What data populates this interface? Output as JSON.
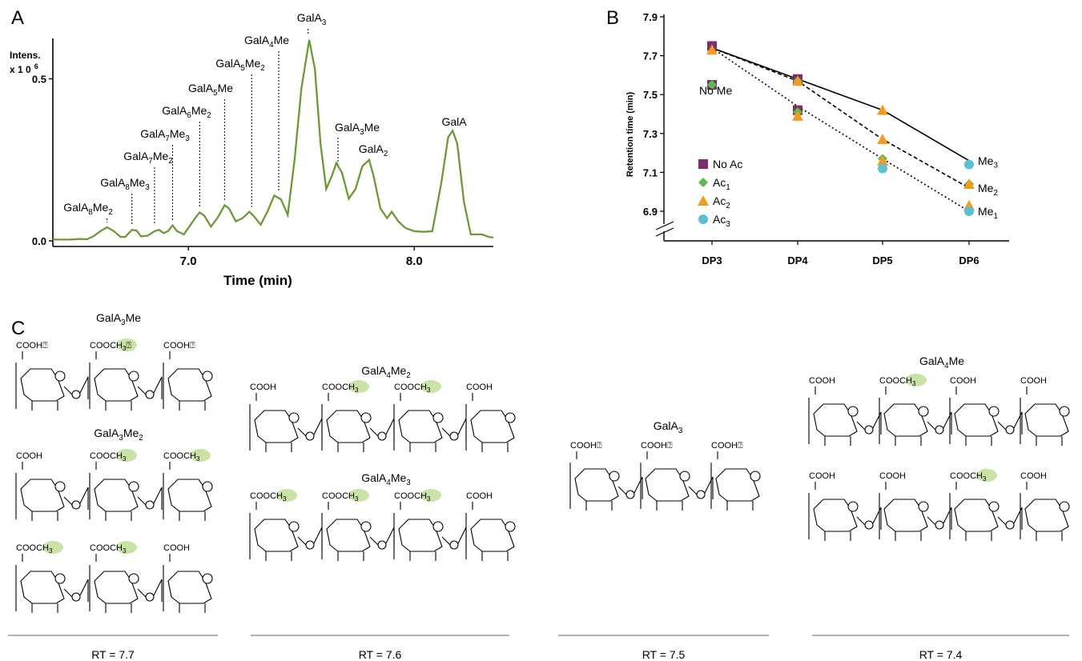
{
  "panels": {
    "a": "A",
    "b": "B",
    "c": "C"
  },
  "chart_data": [
    {
      "type": "line",
      "panel": "A",
      "xlabel": "Time (min)",
      "ylabel_line1": "Intens.",
      "ylabel_line2": "x 1 0",
      "ylabel_exp": "6",
      "xlim": [
        6.4,
        8.35
      ],
      "ylim": [
        0,
        0.6
      ],
      "xticks": [
        {
          "v": 7.0,
          "label": "7.0"
        },
        {
          "v": 8.0,
          "label": "8.0"
        }
      ],
      "yticks": [
        {
          "v": 0.0,
          "label": "0.0"
        },
        {
          "v": 0.5,
          "label": "0.5"
        }
      ],
      "line_color": "#6b9a34",
      "series": [
        {
          "values": [
            [
              6.4,
              0.004
            ],
            [
              6.48,
              0.004
            ],
            [
              6.52,
              0.006
            ],
            [
              6.55,
              0.005
            ],
            [
              6.58,
              0.014
            ],
            [
              6.61,
              0.03
            ],
            [
              6.64,
              0.042
            ],
            [
              6.67,
              0.03
            ],
            [
              6.7,
              0.012
            ],
            [
              6.72,
              0.012
            ],
            [
              6.75,
              0.034
            ],
            [
              6.77,
              0.032
            ],
            [
              6.79,
              0.014
            ],
            [
              6.82,
              0.016
            ],
            [
              6.85,
              0.03
            ],
            [
              6.87,
              0.034
            ],
            [
              6.89,
              0.024
            ],
            [
              6.91,
              0.03
            ],
            [
              6.93,
              0.048
            ],
            [
              6.95,
              0.03
            ],
            [
              6.98,
              0.02
            ],
            [
              7.0,
              0.04
            ],
            [
              7.03,
              0.07
            ],
            [
              7.05,
              0.088
            ],
            [
              7.07,
              0.078
            ],
            [
              7.1,
              0.044
            ],
            [
              7.13,
              0.072
            ],
            [
              7.16,
              0.11
            ],
            [
              7.18,
              0.1
            ],
            [
              7.21,
              0.06
            ],
            [
              7.24,
              0.07
            ],
            [
              7.27,
              0.09
            ],
            [
              7.29,
              0.076
            ],
            [
              7.32,
              0.05
            ],
            [
              7.35,
              0.09
            ],
            [
              7.38,
              0.14
            ],
            [
              7.41,
              0.128
            ],
            [
              7.44,
              0.08
            ],
            [
              7.47,
              0.25
            ],
            [
              7.5,
              0.47
            ],
            [
              7.535,
              0.62
            ],
            [
              7.56,
              0.53
            ],
            [
              7.585,
              0.3
            ],
            [
              7.61,
              0.16
            ],
            [
              7.635,
              0.2
            ],
            [
              7.655,
              0.24
            ],
            [
              7.68,
              0.21
            ],
            [
              7.71,
              0.13
            ],
            [
              7.74,
              0.16
            ],
            [
              7.77,
              0.23
            ],
            [
              7.8,
              0.25
            ],
            [
              7.82,
              0.2
            ],
            [
              7.85,
              0.1
            ],
            [
              7.88,
              0.07
            ],
            [
              7.9,
              0.09
            ],
            [
              7.93,
              0.06
            ],
            [
              7.96,
              0.04
            ],
            [
              8.0,
              0.03
            ],
            [
              8.04,
              0.028
            ],
            [
              8.08,
              0.03
            ],
            [
              8.12,
              0.18
            ],
            [
              8.15,
              0.32
            ],
            [
              8.17,
              0.34
            ],
            [
              8.19,
              0.3
            ],
            [
              8.22,
              0.12
            ],
            [
              8.25,
              0.02
            ],
            [
              8.3,
              0.02
            ],
            [
              8.33,
              0.012
            ],
            [
              8.35,
              0.01
            ]
          ]
        }
      ],
      "annotations": [
        {
          "id": "galA8Me2",
          "base": "GalA",
          "sub1": "8",
          "mid": "Me",
          "sub2": "2",
          "x": 6.64,
          "lineTop": 0.085
        },
        {
          "id": "galA8Me3",
          "base": "GalA",
          "sub1": "8",
          "mid": "Me",
          "sub2": "3",
          "x": 6.75,
          "lineTop": 0.175
        },
        {
          "id": "galA7Me2",
          "base": "GalA",
          "sub1": "7",
          "mid": "Me",
          "sub2": "2",
          "x": 6.85,
          "lineTop": 0.245
        },
        {
          "id": "galA7Me3",
          "base": "GalA",
          "sub1": "7",
          "mid": "Me",
          "sub2": "3",
          "x": 6.93,
          "lineTop": 0.315
        },
        {
          "id": "galA6Me2",
          "base": "GalA",
          "sub1": "6",
          "mid": "Me",
          "sub2": "2",
          "x": 7.05,
          "lineTop": 0.385
        },
        {
          "id": "galA5Me",
          "base": "GalA",
          "sub1": "5",
          "mid": "Me",
          "sub2": "",
          "x": 7.16,
          "lineTop": 0.458
        },
        {
          "id": "galA5Me2",
          "base": "GalA",
          "sub1": "5",
          "mid": "Me",
          "sub2": "2",
          "x": 7.28,
          "lineTop": 0.565
        },
        {
          "id": "galA4Me",
          "base": "GalA",
          "sub1": "4",
          "mid": "Me",
          "sub2": "",
          "x": 7.4,
          "lineTop": 0.665
        },
        {
          "id": "galA3",
          "base": "GalA",
          "sub1": "3",
          "mid": "",
          "sub2": "",
          "x": 7.53,
          "lineTop": 0.82
        },
        {
          "id": "galA3Me",
          "base": "GalA",
          "sub1": "",
          "mid": "",
          "sub2": "",
          "x": 7.65,
          "lineTop": 0.0,
          "text": "GalA3Me"
        },
        {
          "id": "galA2",
          "base": "GalA",
          "sub1": "2",
          "mid": "",
          "sub2": "",
          "x": 7.8,
          "lineTop": 0.0
        },
        {
          "id": "galA",
          "base": "GalA",
          "sub1": "",
          "mid": "",
          "sub2": "",
          "x": 8.15,
          "lineTop": 0.0
        }
      ]
    },
    {
      "type": "scatter",
      "panel": "B",
      "ylabel": "Retention time (min)",
      "categories": [
        "DP3",
        "DP4",
        "DP5",
        "DP6"
      ],
      "ylim": [
        6.75,
        7.9
      ],
      "yticks": [
        {
          "v": 7.9,
          "label": "7.9"
        },
        {
          "v": 7.7,
          "label": "7.7"
        },
        {
          "v": 7.5,
          "label": "7.5"
        },
        {
          "v": 7.3,
          "label": "7.3"
        },
        {
          "v": 7.1,
          "label": "7.1"
        },
        {
          "v": 6.9,
          "label": "6.9"
        }
      ],
      "axis_break": true,
      "series": [
        {
          "name": "No Ac",
          "sub": "",
          "shape": "square",
          "color": "#7b2f6e",
          "points": [
            [
              0,
              7.75
            ],
            [
              0,
              7.55
            ],
            [
              1,
              7.58
            ],
            [
              1,
              7.42
            ]
          ]
        },
        {
          "name": "Ac",
          "sub": "1",
          "shape": "diamond",
          "color": "#5dbb46",
          "points": [
            [
              0,
              7.55
            ],
            [
              1,
              7.57
            ],
            [
              1,
              7.41
            ],
            [
              2,
              7.17
            ],
            [
              3,
              7.04
            ]
          ]
        },
        {
          "name": "Ac",
          "sub": "2",
          "shape": "triangle",
          "color": "#f39c1f",
          "points": [
            [
              0,
              7.73
            ],
            [
              1,
              7.57
            ],
            [
              1,
              7.39
            ],
            [
              2,
              7.42
            ],
            [
              2,
              7.27
            ],
            [
              2,
              7.16
            ],
            [
              3,
              7.04
            ],
            [
              3,
              6.93
            ]
          ]
        },
        {
          "name": "Ac",
          "sub": "3",
          "shape": "circle",
          "color": "#5bc0d6",
          "points": [
            [
              2,
              7.12
            ],
            [
              3,
              7.14
            ],
            [
              3,
              6.9
            ]
          ]
        }
      ],
      "trend_lines": [
        {
          "name": "Me",
          "sub": "3",
          "style": "solid",
          "points": [
            [
              0,
              7.74
            ],
            [
              1,
              7.58
            ],
            [
              2,
              7.42
            ],
            [
              3,
              7.16
            ]
          ]
        },
        {
          "name": "Me",
          "sub": "2",
          "style": "dashed",
          "points": [
            [
              0,
              7.74
            ],
            [
              1,
              7.57
            ],
            [
              2,
              7.27
            ],
            [
              3,
              7.02
            ]
          ]
        },
        {
          "name": "Me",
          "sub": "1",
          "style": "dotted",
          "points": [
            [
              0,
              7.74
            ],
            [
              1,
              7.44
            ],
            [
              2,
              7.17
            ],
            [
              3,
              6.9
            ]
          ]
        }
      ],
      "annotation_no_me": "No Me"
    }
  ],
  "structures": {
    "group1": {
      "rt": "RT = 7.7",
      "molecules": [
        {
          "label": "GalA3Me",
          "base": "GalA",
          "sub1": "3",
          "mid": "Me",
          "sub2": "",
          "groups": [
            "COOH⍰",
            "COOCH3⍰",
            "COOH⍰"
          ]
        },
        {
          "label": "GalA3Me2",
          "base": "GalA",
          "sub1": "3",
          "mid": "Me",
          "sub2": "2",
          "groups": [
            "COOH",
            "COOCH3",
            "COOCH3"
          ]
        },
        {
          "label": "",
          "base": "",
          "sub1": "",
          "mid": "",
          "sub2": "",
          "groups": [
            "COOCH3",
            "COOCH3",
            "COOH"
          ]
        }
      ]
    },
    "group2": {
      "rt": "RT = 7.6",
      "molecules": [
        {
          "label": "GalA4Me2",
          "base": "GalA",
          "sub1": "4",
          "mid": "Me",
          "sub2": "2",
          "groups": [
            "COOH",
            "COOCH3",
            "COOCH3",
            "COOH"
          ]
        },
        {
          "label": "GalA4Me3",
          "base": "GalA",
          "sub1": "4",
          "mid": "Me",
          "sub2": "3",
          "groups": [
            "COOCH3",
            "COOCH3",
            "COOCH3",
            "COOH"
          ]
        }
      ]
    },
    "group3": {
      "rt": "RT = 7.5",
      "molecules": [
        {
          "label": "GalA3",
          "base": "GalA",
          "sub1": "3",
          "mid": "",
          "sub2": "",
          "groups": [
            "COOH⍰",
            "COOH⍰",
            "COOH⍰"
          ]
        }
      ]
    },
    "group4": {
      "rt": "RT = 7.4",
      "molecules": [
        {
          "label": "GalA4Me",
          "base": "GalA",
          "sub1": "4",
          "mid": "Me",
          "sub2": "",
          "groups": [
            "COOH",
            "COOCH3",
            "COOH",
            "COOH"
          ]
        },
        {
          "label": "",
          "base": "",
          "sub1": "",
          "mid": "",
          "sub2": "",
          "groups": [
            "COOH",
            "COOH",
            "COOCH3",
            "COOH"
          ]
        }
      ]
    },
    "highlight_color": "#c9e3a6"
  }
}
